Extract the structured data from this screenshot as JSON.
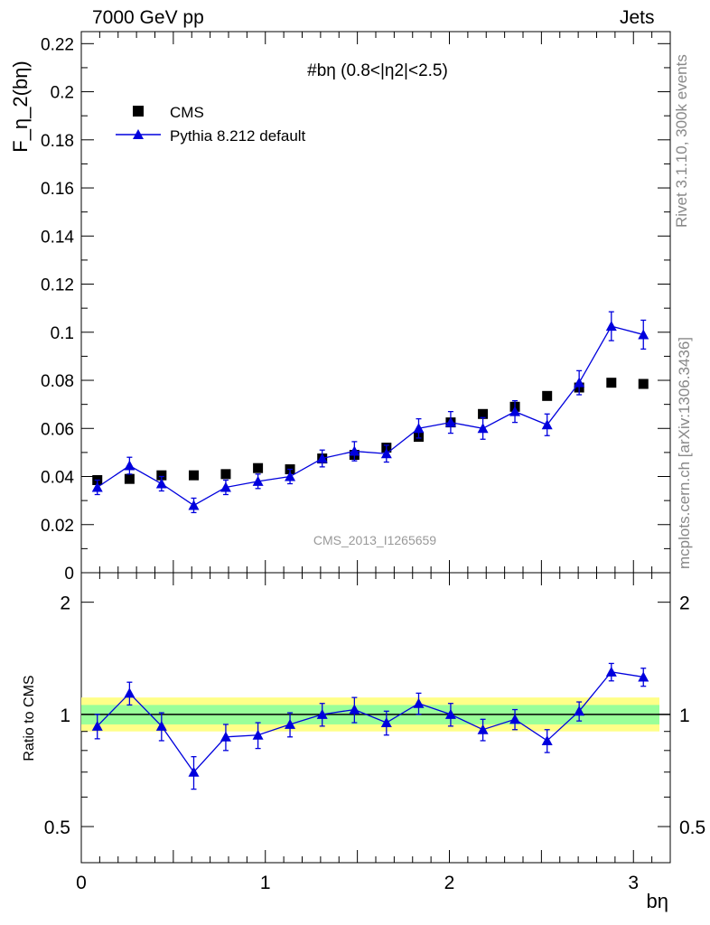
{
  "header": {
    "left": "7000 GeV pp",
    "right": "Jets"
  },
  "side_labels": {
    "top": "Rivet 3.1.10,  300k events",
    "bottom": "mcplots.cern.ch [arXiv:1306.3436]"
  },
  "watermark": "CMS_2013_I1265659",
  "chart_data": [
    {
      "type": "scatter",
      "title": "#bη (0.8<|η2|<2.5)",
      "ylabel": "F_η_2(bη)",
      "ylim": [
        0,
        0.225
      ],
      "xlim": [
        0,
        3.2
      ],
      "grid": false,
      "legend_position": "top-left",
      "y_ticks": [
        "0",
        "0.02",
        "0.04",
        "0.06",
        "0.08",
        "0.1",
        "0.12",
        "0.14",
        "0.16",
        "0.18",
        "0.2",
        "0.22"
      ],
      "series": [
        {
          "name": "CMS",
          "marker": "square",
          "color": "#000000",
          "x": [
            0.087,
            0.262,
            0.436,
            0.611,
            0.785,
            0.96,
            1.134,
            1.309,
            1.484,
            1.658,
            1.833,
            2.007,
            2.182,
            2.356,
            2.531,
            2.705,
            2.88,
            3.054
          ],
          "y": [
            0.0385,
            0.039,
            0.0405,
            0.0405,
            0.041,
            0.0435,
            0.043,
            0.0475,
            0.049,
            0.052,
            0.0565,
            0.0625,
            0.066,
            0.069,
            0.0735,
            0.077,
            0.079,
            0.0785
          ]
        },
        {
          "name": "Pythia 8.212 default",
          "marker": "triangle",
          "color": "#0000dd",
          "x": [
            0.087,
            0.262,
            0.436,
            0.611,
            0.785,
            0.96,
            1.134,
            1.309,
            1.484,
            1.658,
            1.833,
            2.007,
            2.182,
            2.356,
            2.531,
            2.705,
            2.88,
            3.054
          ],
          "y": [
            0.0355,
            0.0445,
            0.037,
            0.028,
            0.0355,
            0.038,
            0.04,
            0.0475,
            0.0505,
            0.0495,
            0.06,
            0.0625,
            0.06,
            0.067,
            0.0615,
            0.079,
            0.1025,
            0.099
          ],
          "yerr": [
            0.003,
            0.0035,
            0.003,
            0.003,
            0.003,
            0.003,
            0.003,
            0.0035,
            0.004,
            0.0035,
            0.004,
            0.0045,
            0.0045,
            0.0045,
            0.0045,
            0.005,
            0.006,
            0.006
          ]
        }
      ]
    },
    {
      "type": "scatter",
      "ylabel": "Ratio to CMS",
      "xlabel": "bη",
      "ylim": [
        0.4,
        2.4
      ],
      "log_scale_y": true,
      "xlim": [
        0,
        3.2
      ],
      "y_ticks": [
        "0.5",
        "1",
        "2"
      ],
      "x_ticks": [
        "0",
        "1",
        "2",
        "3"
      ],
      "reference_line": 1,
      "band_colors": {
        "inner": "#99ff99",
        "outer": "#ffff88"
      },
      "series": [
        {
          "name": "Pythia 8.212 default",
          "color": "#0000dd",
          "x": [
            0.087,
            0.262,
            0.436,
            0.611,
            0.785,
            0.96,
            1.134,
            1.309,
            1.484,
            1.658,
            1.833,
            2.007,
            2.182,
            2.356,
            2.531,
            2.705,
            2.88,
            3.054
          ],
          "y": [
            0.93,
            1.14,
            0.93,
            0.7,
            0.87,
            0.88,
            0.94,
            1.0,
            1.03,
            0.95,
            1.07,
            1.0,
            0.91,
            0.97,
            0.85,
            1.02,
            1.3,
            1.26
          ],
          "yerr": [
            0.07,
            0.08,
            0.08,
            0.07,
            0.07,
            0.07,
            0.07,
            0.07,
            0.08,
            0.07,
            0.07,
            0.07,
            0.06,
            0.06,
            0.06,
            0.06,
            0.07,
            0.07
          ]
        }
      ]
    }
  ]
}
